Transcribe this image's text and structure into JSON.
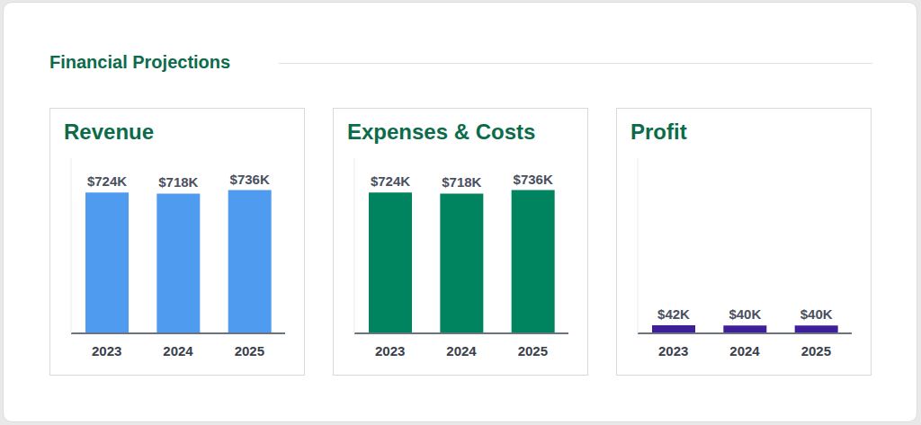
{
  "title": "Financial Projections",
  "chart_data": [
    {
      "type": "bar",
      "title": "Revenue",
      "categories": [
        "2023",
        "2024",
        "2025"
      ],
      "values": [
        724,
        718,
        736
      ],
      "value_labels": [
        "$724K",
        "$718K",
        "$736K"
      ],
      "color": "#4f9bef",
      "ylim": [
        0,
        900
      ],
      "data_labels": true,
      "tick_labels": "x",
      "grid": false
    },
    {
      "type": "bar",
      "title": "Expenses & Costs",
      "categories": [
        "2023",
        "2024",
        "2025"
      ],
      "values": [
        724,
        718,
        736
      ],
      "value_labels": [
        "$724K",
        "$718K",
        "$736K"
      ],
      "color": "#00845f",
      "ylim": [
        0,
        900
      ],
      "data_labels": true,
      "tick_labels": "x",
      "grid": false
    },
    {
      "type": "bar",
      "title": "Profit",
      "categories": [
        "2023",
        "2024",
        "2025"
      ],
      "values": [
        42,
        40,
        40
      ],
      "value_labels": [
        "$42K",
        "$40K",
        "$40K"
      ],
      "color": "#3f1f99",
      "ylim": [
        0,
        900
      ],
      "data_labels": true,
      "tick_labels": "x",
      "grid": false
    }
  ]
}
